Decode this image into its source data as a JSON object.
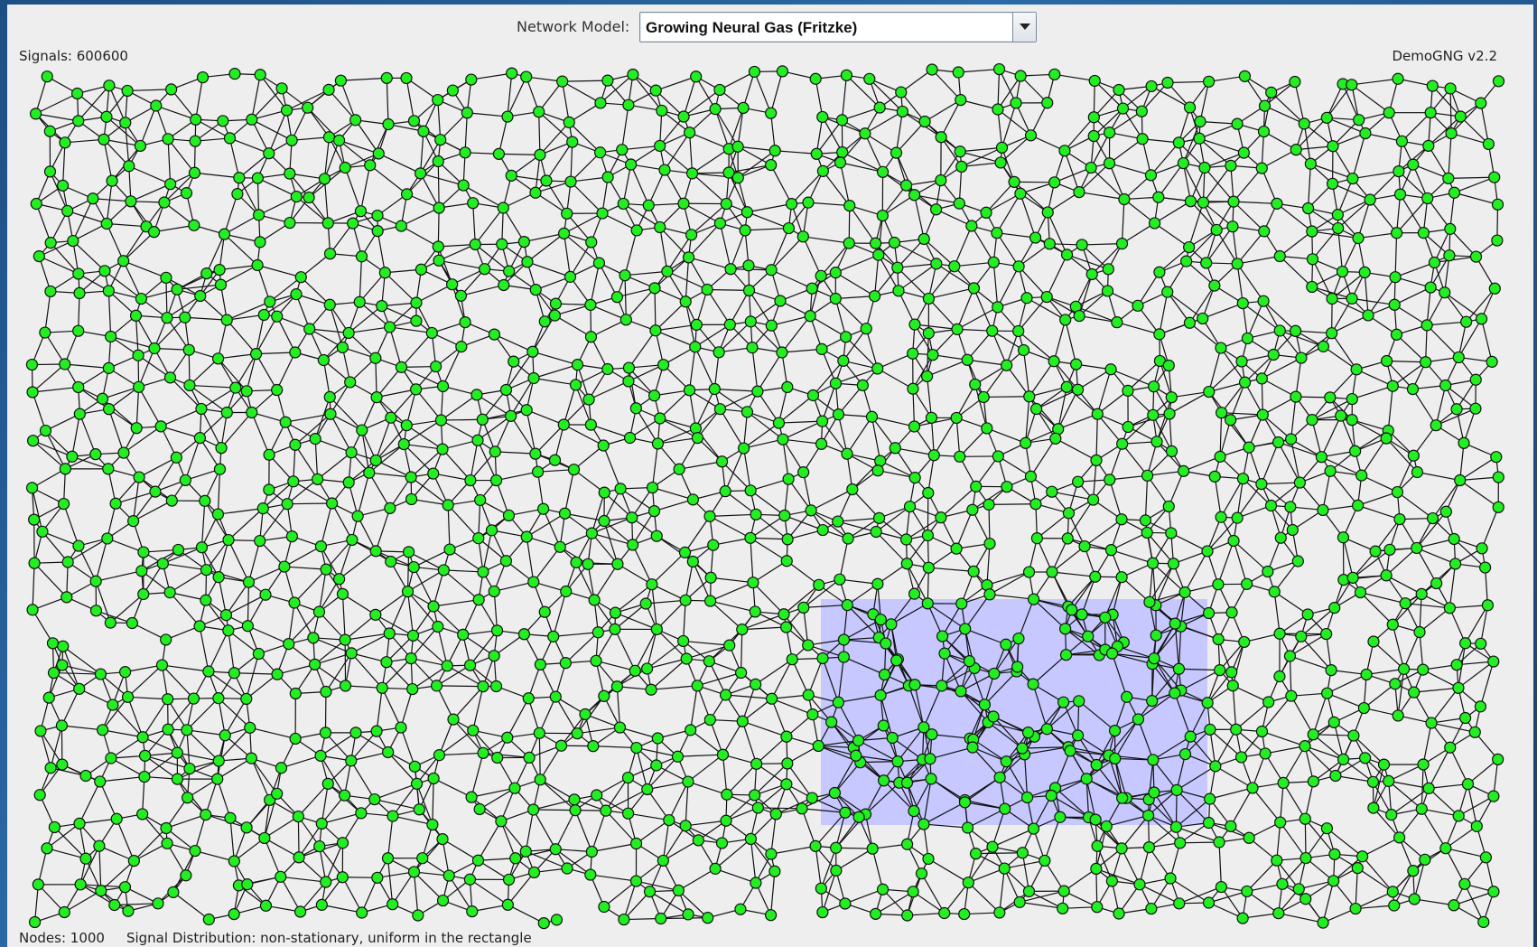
{
  "header": {
    "model_label": "Network Model:",
    "model_selected": "Growing Neural Gas (Fritzke)"
  },
  "status": {
    "signals_label": "Signals: 600600",
    "version": "DemoGNG v2.2",
    "nodes_label": "Nodes: 1000",
    "distribution_label": "Signal Distribution: non-stationary, uniform in the rectangle"
  },
  "colors": {
    "window_background": "#1f5a8c",
    "panel_background": "#eeeeee",
    "node_fill": "#22ee22",
    "node_stroke": "#111111",
    "edge": "#111111",
    "signal_region": "#c6c8ff"
  }
}
